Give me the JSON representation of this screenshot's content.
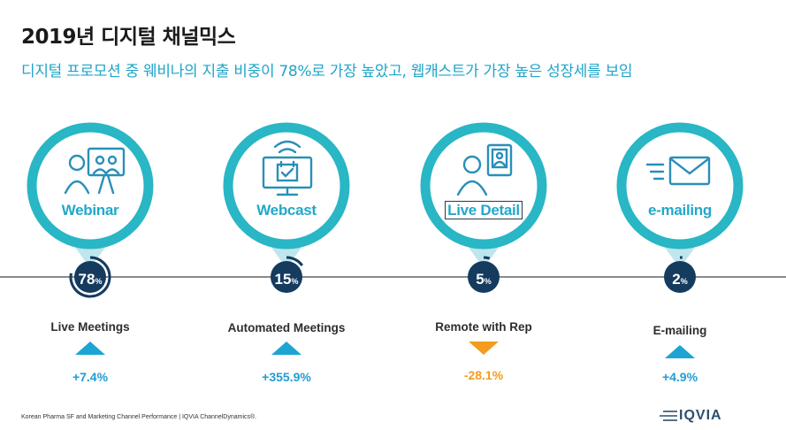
{
  "title": "2019년 디지털 채널믹스",
  "subtitle": "디지털 프로모션 중 웨비나의 지출 비중이 78%로 가장 높았고, 웹캐스트가 가장 높은 성장세를 보임",
  "colors": {
    "teal": "#29b6c5",
    "ring": "#1fa9c0",
    "badge": "#153b5f",
    "up": "#1ca5d3",
    "down": "#f39c1f"
  },
  "channels": [
    {
      "label": "Webinar",
      "icon": "meeting-icon",
      "share": "78",
      "share_unit": "%",
      "share_fraction": 0.78,
      "metric": "Live Meetings",
      "direction": "up",
      "change": "+7.4%"
    },
    {
      "label": "Webcast",
      "icon": "monitor-broadcast-icon",
      "share": "15",
      "share_unit": "%",
      "share_fraction": 0.15,
      "metric": "Automated Meetings",
      "direction": "up",
      "change": "+355.9%"
    },
    {
      "label": "Live Detail",
      "icon": "rep-tablet-icon",
      "share": "5",
      "share_unit": "%",
      "share_fraction": 0.05,
      "metric": "Remote with  Rep",
      "direction": "down",
      "change": "-28.1%"
    },
    {
      "label": "e-mailing",
      "icon": "email-icon",
      "share": "2",
      "share_unit": "%",
      "share_fraction": 0.02,
      "metric": "E-mailing",
      "direction": "up",
      "change": "+4.9%"
    }
  ],
  "footer": "Korean Pharma SF and Marketing Channel Performance | IQVIA ChannelDynamics®.",
  "logo": "IQVIA"
}
